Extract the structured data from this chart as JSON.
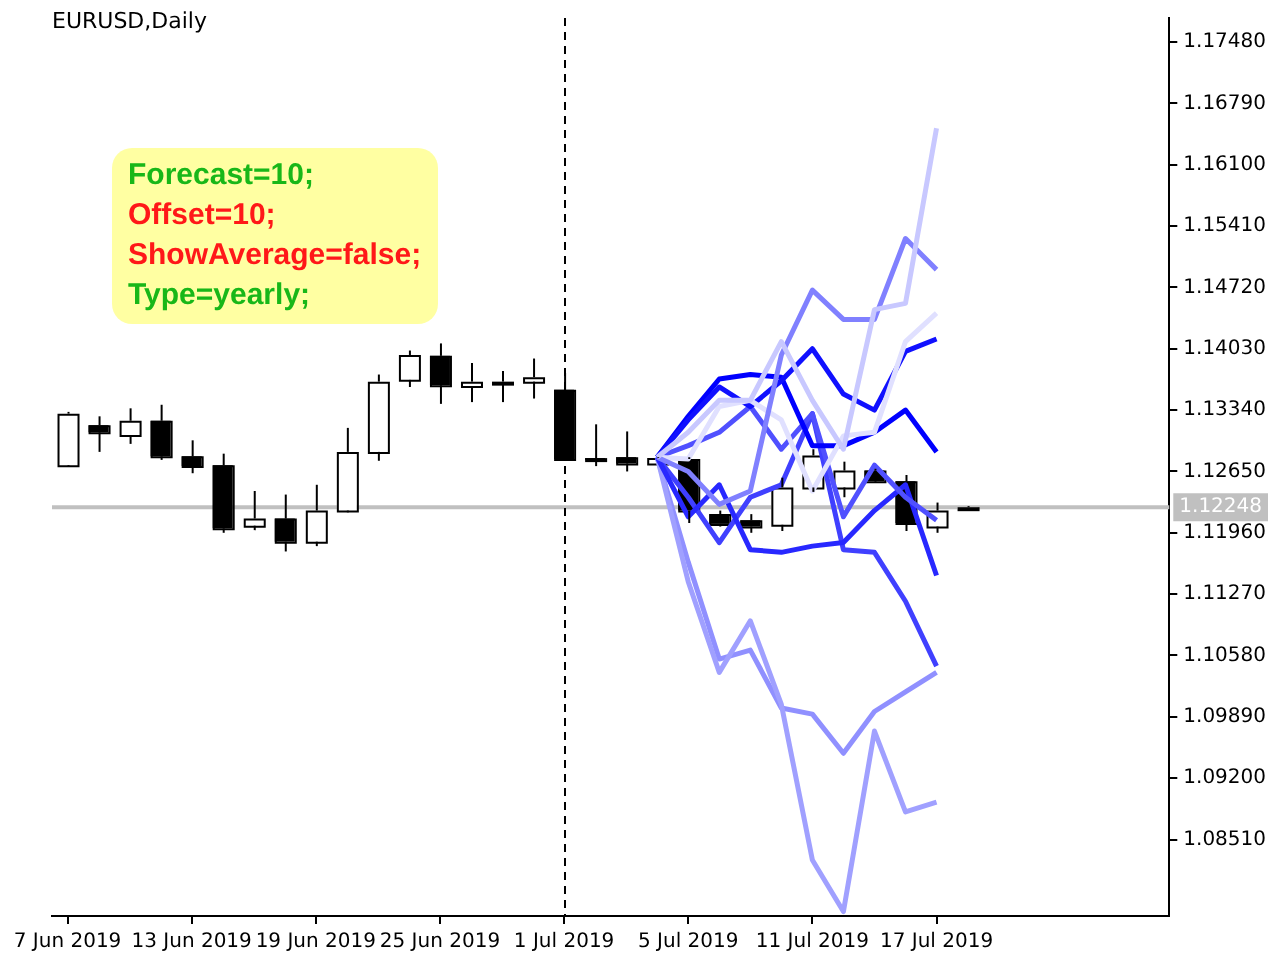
{
  "chart_data": {
    "type": "candlestick",
    "title": "EURUSD,Daily",
    "annotations": [
      "Forecast=10;",
      "Offset=10;",
      "ShowAverage=false;",
      "Type=yearly;"
    ],
    "categories": [
      "7 Jun 2019",
      null,
      null,
      null,
      "13 Jun 2019",
      null,
      null,
      null,
      "19 Jun 2019",
      null,
      null,
      null,
      "25 Jun 2019",
      null,
      null,
      null,
      "1 Jul 2019",
      null,
      null,
      null,
      "5 Jul 2019",
      null,
      null,
      null,
      "11 Jul 2019",
      null,
      null,
      null,
      "17 Jul 2019",
      null,
      null,
      null,
      null,
      null,
      null,
      null
    ],
    "ohlc": [
      [
        1.1272,
        1.1332,
        1.127,
        1.133
      ],
      [
        1.1317,
        1.1327,
        1.1287,
        1.1309
      ],
      [
        1.1306,
        1.1336,
        1.1296,
        1.1322
      ],
      [
        1.1322,
        1.134,
        1.1278,
        1.1282
      ],
      [
        1.1282,
        1.13,
        1.1263,
        1.1271
      ],
      [
        1.1272,
        1.1285,
        1.1196,
        1.1201
      ],
      [
        1.1204,
        1.1243,
        1.1199,
        1.1212
      ],
      [
        1.1212,
        1.1239,
        1.1175,
        1.1186
      ],
      [
        1.1186,
        1.125,
        1.1181,
        1.1221
      ],
      [
        1.1221,
        1.1314,
        1.1219,
        1.1287
      ],
      [
        1.1287,
        1.1374,
        1.1277,
        1.1366
      ],
      [
        1.1368,
        1.1401,
        1.136,
        1.1396
      ],
      [
        1.1395,
        1.1409,
        1.1341,
        1.1362
      ],
      [
        1.1361,
        1.1387,
        1.1343,
        1.1366
      ],
      [
        1.1365,
        1.1378,
        1.1343,
        1.1366
      ],
      [
        1.1366,
        1.1392,
        1.1347,
        1.1371
      ],
      [
        1.1357,
        1.1376,
        1.1279,
        1.1279
      ],
      [
        1.128,
        1.1318,
        1.1271,
        1.1279
      ],
      [
        1.1281,
        1.131,
        1.1265,
        1.1274
      ],
      [
        1.1274,
        1.1281,
        1.1274,
        1.128
      ],
      [
        1.1279,
        1.1281,
        1.1207,
        1.1221
      ],
      [
        1.1217,
        1.1221,
        1.1203,
        1.1206
      ],
      [
        1.121,
        1.1217,
        1.1196,
        1.1203
      ],
      [
        1.1205,
        1.1258,
        1.1198,
        1.1247
      ],
      [
        1.1247,
        1.129,
        1.1242,
        1.1283
      ],
      [
        1.1247,
        1.1276,
        1.1236,
        1.1266
      ],
      [
        1.1266,
        1.1268,
        1.1253,
        1.1254
      ],
      [
        1.1254,
        1.1261,
        1.1198,
        1.1207
      ],
      [
        1.1203,
        1.123,
        1.1196,
        1.1221
      ],
      [
        1.1224,
        1.1226,
        1.1223,
        1.12248
      ],
      null,
      null,
      null,
      null,
      null,
      null
    ],
    "series": [
      {
        "type": "line",
        "color": "#c8c8ff",
        "values": [
          null,
          null,
          null,
          null,
          null,
          null,
          null,
          null,
          null,
          null,
          null,
          null,
          null,
          null,
          null,
          null,
          null,
          null,
          null,
          1.1281,
          1.1309,
          1.1345,
          1.1345,
          1.1411,
          1.1345,
          1.129,
          1.1447,
          1.1454,
          1.1651,
          null,
          null,
          null,
          null,
          null,
          null,
          null
        ]
      },
      {
        "type": "line",
        "color": "#8080ff",
        "values": [
          null,
          null,
          null,
          null,
          null,
          null,
          null,
          null,
          null,
          null,
          null,
          null,
          null,
          null,
          null,
          null,
          null,
          null,
          null,
          1.1281,
          1.1265,
          1.1228,
          1.1243,
          1.1396,
          1.1469,
          1.1436,
          1.1436,
          1.1527,
          1.1492,
          null,
          null,
          null,
          null,
          null,
          null,
          null
        ]
      },
      {
        "type": "line",
        "color": "#e0e0ff",
        "values": [
          null,
          null,
          null,
          null,
          null,
          null,
          null,
          null,
          null,
          null,
          null,
          null,
          null,
          null,
          null,
          null,
          null,
          null,
          null,
          1.1281,
          1.1279,
          1.1338,
          1.1345,
          1.1323,
          1.1243,
          1.1305,
          1.1309,
          1.1411,
          1.1443,
          null,
          null,
          null,
          null,
          null,
          null,
          null
        ]
      },
      {
        "type": "line",
        "color": "#1010ff",
        "values": [
          null,
          null,
          null,
          null,
          null,
          null,
          null,
          null,
          null,
          null,
          null,
          null,
          null,
          null,
          null,
          null,
          null,
          null,
          null,
          1.1281,
          1.1323,
          1.136,
          1.1338,
          1.1367,
          1.1403,
          1.1352,
          1.1334,
          1.14,
          1.1414,
          null,
          null,
          null,
          null,
          null,
          null,
          null
        ]
      },
      {
        "type": "line",
        "color": "#0000ff",
        "values": [
          null,
          null,
          null,
          null,
          null,
          null,
          null,
          null,
          null,
          null,
          null,
          null,
          null,
          null,
          null,
          null,
          null,
          null,
          null,
          1.1281,
          1.1327,
          1.1369,
          1.1374,
          1.1371,
          1.1294,
          1.1294,
          1.1309,
          1.1334,
          1.1287,
          null,
          null,
          null,
          null,
          null,
          null,
          null
        ]
      },
      {
        "type": "line",
        "color": "#5050ff",
        "values": [
          null,
          null,
          null,
          null,
          null,
          null,
          null,
          null,
          null,
          null,
          null,
          null,
          null,
          null,
          null,
          null,
          null,
          null,
          null,
          1.1281,
          1.1294,
          1.1309,
          1.1338,
          1.129,
          1.133,
          1.1214,
          1.1272,
          1.1236,
          1.121,
          null,
          null,
          null,
          null,
          null,
          null,
          null
        ]
      },
      {
        "type": "line",
        "color": "#2828ff",
        "values": [
          null,
          null,
          null,
          null,
          null,
          null,
          null,
          null,
          null,
          null,
          null,
          null,
          null,
          null,
          null,
          null,
          null,
          null,
          null,
          1.1281,
          1.1214,
          1.125,
          1.1177,
          1.1174,
          1.1181,
          1.1185,
          1.1221,
          1.125,
          1.1148,
          null,
          null,
          null,
          null,
          null,
          null,
          null
        ]
      },
      {
        "type": "line",
        "color": "#4040ff",
        "values": [
          null,
          null,
          null,
          null,
          null,
          null,
          null,
          null,
          null,
          null,
          null,
          null,
          null,
          null,
          null,
          null,
          null,
          null,
          null,
          1.1281,
          1.1236,
          1.1185,
          1.1236,
          1.125,
          1.133,
          1.1177,
          1.1174,
          1.1119,
          1.1046,
          null,
          null,
          null,
          null,
          null,
          null,
          null
        ]
      },
      {
        "type": "line",
        "color": "#a0a0ff",
        "values": [
          null,
          null,
          null,
          null,
          null,
          null,
          null,
          null,
          null,
          null,
          null,
          null,
          null,
          null,
          null,
          null,
          null,
          null,
          null,
          1.1281,
          1.1141,
          1.1039,
          1.1097,
          1.1003,
          1.0828,
          1.077,
          1.0973,
          1.0882,
          1.0893,
          null,
          null,
          null,
          null,
          null,
          null,
          null
        ]
      },
      {
        "type": "line",
        "color": "#9090ff",
        "values": [
          null,
          null,
          null,
          null,
          null,
          null,
          null,
          null,
          null,
          null,
          null,
          null,
          null,
          null,
          null,
          null,
          null,
          null,
          null,
          1.1281,
          1.1163,
          1.1054,
          1.1064,
          1.0999,
          1.0992,
          1.0948,
          1.0995,
          1.1017,
          1.1039,
          null,
          null,
          null,
          null,
          null,
          null,
          null
        ]
      }
    ],
    "ylim": [
      1.0765,
      1.1775
    ],
    "yticks": [
      {
        "value": 1.1748,
        "label": "1.17480"
      },
      {
        "value": 1.1679,
        "label": "1.16790"
      },
      {
        "value": 1.161,
        "label": "1.16100"
      },
      {
        "value": 1.1541,
        "label": "1.15410"
      },
      {
        "value": 1.1472,
        "label": "1.14720"
      },
      {
        "value": 1.1403,
        "label": "1.14030"
      },
      {
        "value": 1.1334,
        "label": "1.13340"
      },
      {
        "value": 1.1265,
        "label": "1.12650"
      },
      {
        "value": 1.1196,
        "label": "1.11960"
      },
      {
        "value": 1.1127,
        "label": "1.11270"
      },
      {
        "value": 1.1058,
        "label": "1.10580"
      },
      {
        "value": 1.0989,
        "label": "1.09890"
      },
      {
        "value": 1.092,
        "label": "1.09200"
      },
      {
        "value": 1.0851,
        "label": "1.08510"
      }
    ],
    "ref_lines": [
      {
        "axis": "y",
        "value": 1.12248,
        "label": "1.12248",
        "color": "#c0c0c0",
        "line_style": "solid"
      },
      {
        "axis": "x",
        "value": "1 Jul 2019",
        "color": "#000000",
        "line_style": "dashed"
      }
    ],
    "grid": false,
    "legend": false,
    "marker": "none"
  }
}
